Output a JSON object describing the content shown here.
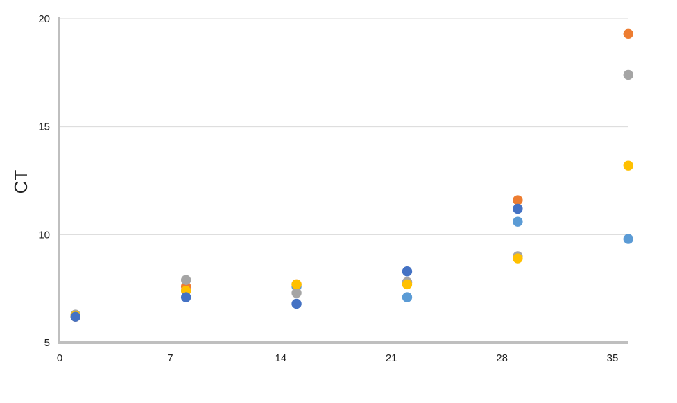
{
  "chart_data": {
    "type": "scatter",
    "title": "",
    "xlabel": "",
    "ylabel": "CT",
    "xlim": [
      0,
      36
    ],
    "ylim": [
      5,
      20
    ],
    "x_ticks": [
      0,
      7,
      14,
      21,
      28,
      35
    ],
    "y_ticks": [
      5,
      10,
      15,
      20
    ],
    "grid": "horizontal",
    "legend": "none",
    "series": [
      {
        "color": "#5B9BD5",
        "x": [
          1,
          8,
          15,
          22,
          29,
          36
        ],
        "y": [
          6.2,
          7.4,
          7.6,
          7.1,
          10.6,
          9.8
        ]
      },
      {
        "color": "#ED7D31",
        "x": [
          1,
          8,
          15,
          22,
          29,
          36
        ],
        "y": [
          6.2,
          7.6,
          7.7,
          7.8,
          11.6,
          19.3
        ]
      },
      {
        "color": "#A5A5A5",
        "x": [
          1,
          8,
          15,
          22,
          29,
          36
        ],
        "y": [
          6.3,
          7.9,
          7.3,
          7.8,
          9.0,
          17.4
        ]
      },
      {
        "color": "#FFC000",
        "x": [
          1,
          8,
          15,
          22,
          29,
          36
        ],
        "y": [
          6.25,
          7.4,
          7.7,
          7.7,
          8.9,
          13.2
        ]
      },
      {
        "color": "#4472C4",
        "x": [
          1,
          8,
          15,
          22,
          29,
          36
        ],
        "y": [
          6.2,
          7.1,
          6.8,
          8.3,
          11.2,
          null
        ]
      }
    ]
  }
}
